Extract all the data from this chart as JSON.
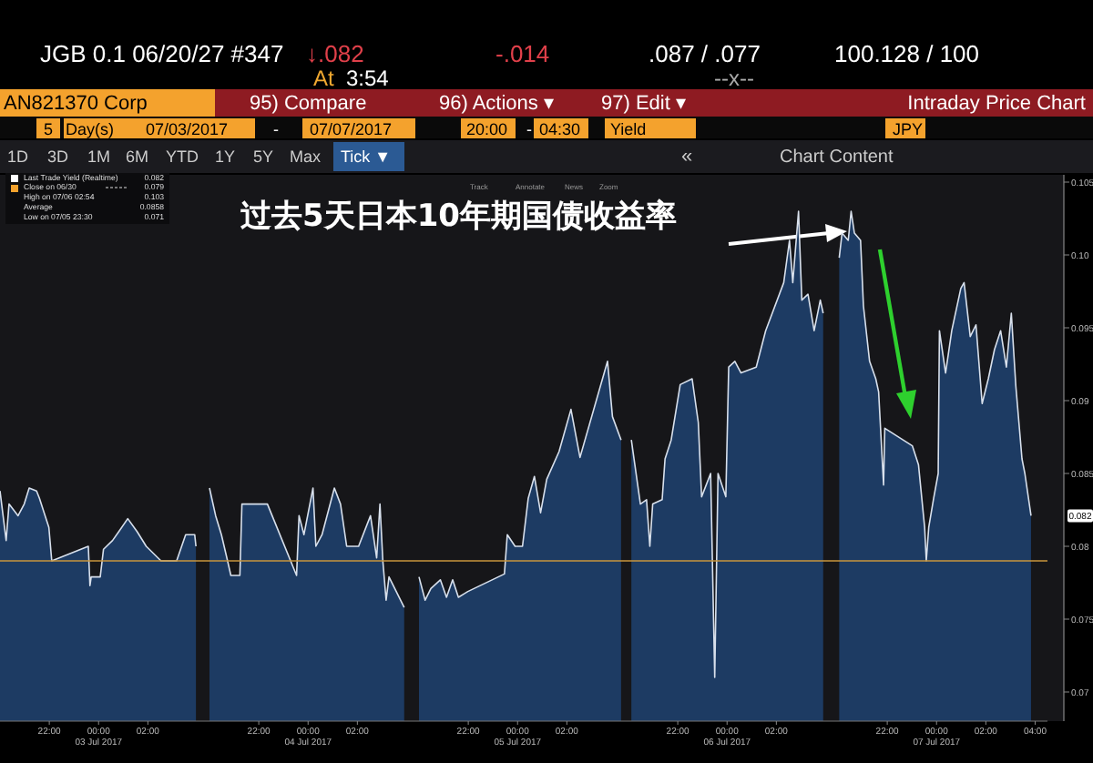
{
  "chart_data": [
    {
      "type": "other",
      "title": "过去5天日本10年期国债收益率",
      "annotations": [
        "JGB 0.1 06/20/27 #347",
        "↓.082",
        "-.014",
        ".087 / .077",
        "100.128 / 100",
        "At",
        "3:54",
        "--x--",
        "AN821370 Corp",
        "95) Compare",
        "96) Actions ▾",
        "97) Edit ▾",
        "Intraday Price Chart",
        "5",
        "Day(s)",
        "07/03/2017",
        "-",
        "07/07/2017",
        "20:00",
        "-",
        "04:30",
        "Yield",
        "JPY",
        "1D",
        "3D",
        "1M",
        "6M",
        "YTD",
        "1Y",
        "5Y",
        "Max",
        "Tick ▼",
        "«",
        "Chart Content",
        "Track",
        "Annotate",
        "News",
        "Zoom",
        "Last Trade Yield (Realtime)",
        "0.082",
        "Close on 06/30",
        "0.079",
        "High on 07/06 02:54",
        "0.103",
        "Average",
        "0.0858",
        "Low on 07/05 23:30",
        "0.071"
      ]
    },
    {
      "type": "area",
      "xlabel": "03 Jul 2017",
      "color": "#1d3b63",
      "xlim": [
        "2017-07-02T20:00",
        "2017-07-03T04:30"
      ],
      "ylim": [
        0.068,
        0.1055
      ],
      "tick_labels": "x",
      "xticks": [
        {
          "value": "2017-07-02T22:00",
          "label": "22:00"
        },
        {
          "value": "2017-07-03T00:00",
          "label": "00:00"
        },
        {
          "value": "2017-07-03T02:00",
          "label": "02:00"
        }
      ],
      "ref_lines": [
        {
          "axis": "y",
          "value": 0.079,
          "color": "#c8963c"
        }
      ],
      "x": [
        "2017-07-02T20:00",
        "2017-07-02T20:15",
        "2017-07-02T20:22",
        "2017-07-02T20:44",
        "2017-07-02T20:59",
        "2017-07-02T21:11",
        "2017-07-02T21:29",
        "2017-07-02T21:36",
        "2017-07-02T21:59",
        "2017-07-02T22:06",
        "2017-07-02T23:35",
        "2017-07-02T23:39",
        "2017-07-02T23:42",
        "2017-07-03T00:04",
        "2017-07-03T00:12",
        "2017-07-03T00:34",
        "2017-07-03T00:49",
        "2017-07-03T01:11",
        "2017-07-03T01:34",
        "2017-07-03T01:56",
        "2017-07-03T02:32",
        "2017-07-03T03:10",
        "2017-07-03T03:32",
        "2017-07-03T03:54",
        "2017-07-03T03:57"
      ],
      "values": [
        0.0838,
        0.0804,
        0.0829,
        0.0821,
        0.0829,
        0.084,
        0.0838,
        0.0833,
        0.0813,
        0.079,
        0.08,
        0.0773,
        0.0779,
        0.0779,
        0.0798,
        0.0804,
        0.081,
        0.0819,
        0.081,
        0.08,
        0.079,
        0.079,
        0.0808,
        0.0808,
        0.08
      ]
    },
    {
      "type": "area",
      "xlabel": "04 Jul 2017",
      "color": "#1d3b63",
      "xlim": [
        "2017-07-03T20:00",
        "2017-07-04T04:30"
      ],
      "ylim": [
        0.068,
        0.1055
      ],
      "tick_labels": "x",
      "xticks": [
        {
          "value": "2017-07-03T22:00",
          "label": "22:00"
        },
        {
          "value": "2017-07-04T00:00",
          "label": "00:00"
        },
        {
          "value": "2017-07-04T02:00",
          "label": "02:00"
        }
      ],
      "ref_lines": [
        {
          "axis": "y",
          "value": 0.079,
          "color": "#c8963c"
        }
      ],
      "x": [
        "2017-07-03T20:00",
        "2017-07-03T20:15",
        "2017-07-03T20:29",
        "2017-07-03T20:44",
        "2017-07-03T20:52",
        "2017-07-03T21:14",
        "2017-07-03T21:19",
        "2017-07-03T21:29",
        "2017-07-03T22:06",
        "2017-07-03T22:21",
        "2017-07-03T23:32",
        "2017-07-03T23:38",
        "2017-07-03T23:50",
        "2017-07-04T00:12",
        "2017-07-04T00:19",
        "2017-07-04T00:34",
        "2017-07-04T01:04",
        "2017-07-04T01:19",
        "2017-07-04T01:34",
        "2017-07-04T02:03",
        "2017-07-04T02:32",
        "2017-07-04T02:47",
        "2017-07-04T02:55",
        "2017-07-04T03:02",
        "2017-07-04T03:10",
        "2017-07-04T03:17",
        "2017-07-04T03:54"
      ],
      "values": [
        0.084,
        0.0821,
        0.0808,
        0.079,
        0.078,
        0.078,
        0.0829,
        0.0829,
        0.0829,
        0.0829,
        0.078,
        0.0821,
        0.0808,
        0.084,
        0.08,
        0.0808,
        0.084,
        0.0829,
        0.08,
        0.08,
        0.0821,
        0.0792,
        0.0829,
        0.079,
        0.0763,
        0.0779,
        0.0758
      ]
    },
    {
      "type": "area",
      "xlabel": "05 Jul 2017",
      "color": "#1d3b63",
      "xlim": [
        "2017-07-04T20:00",
        "2017-07-05T04:30"
      ],
      "ylim": [
        0.068,
        0.1055
      ],
      "tick_labels": "x",
      "xticks": [
        {
          "value": "2017-07-04T22:00",
          "label": "22:00"
        },
        {
          "value": "2017-07-05T00:00",
          "label": "00:00"
        },
        {
          "value": "2017-07-05T02:00",
          "label": "02:00"
        }
      ],
      "ref_lines": [
        {
          "axis": "y",
          "value": 0.079,
          "color": "#c8963c"
        }
      ],
      "x": [
        "2017-07-04T20:00",
        "2017-07-04T20:15",
        "2017-07-04T20:29",
        "2017-07-04T20:52",
        "2017-07-04T21:07",
        "2017-07-04T21:22",
        "2017-07-04T21:36",
        "2017-07-04T21:59",
        "2017-07-04T23:28",
        "2017-07-04T23:35",
        "2017-07-04T23:54",
        "2017-07-05T00:12",
        "2017-07-05T00:26",
        "2017-07-05T00:41",
        "2017-07-05T00:56",
        "2017-07-05T01:11",
        "2017-07-05T01:41",
        "2017-07-05T02:10",
        "2017-07-05T02:32",
        "2017-07-05T03:39",
        "2017-07-05T03:51",
        "2017-07-05T04:12"
      ],
      "values": [
        0.0779,
        0.0763,
        0.0771,
        0.0777,
        0.0765,
        0.0777,
        0.0765,
        0.0769,
        0.0781,
        0.0808,
        0.08,
        0.08,
        0.0833,
        0.0848,
        0.0823,
        0.0846,
        0.0865,
        0.0894,
        0.0861,
        0.0927,
        0.0889,
        0.0873
      ]
    },
    {
      "type": "area",
      "xlabel": "06 Jul 2017",
      "color": "#1d3b63",
      "xlim": [
        "2017-07-05T20:00",
        "2017-07-06T04:30"
      ],
      "ylim": [
        0.068,
        0.1055
      ],
      "tick_labels": "x",
      "xticks": [
        {
          "value": "2017-07-05T22:00",
          "label": "22:00"
        },
        {
          "value": "2017-07-06T00:00",
          "label": "00:00"
        },
        {
          "value": "2017-07-06T02:00",
          "label": "02:00"
        }
      ],
      "ref_lines": [
        {
          "axis": "y",
          "value": 0.079,
          "color": "#c8963c"
        }
      ],
      "x": [
        "2017-07-05T20:07",
        "2017-07-05T20:29",
        "2017-07-05T20:44",
        "2017-07-05T20:52",
        "2017-07-05T20:59",
        "2017-07-05T21:22",
        "2017-07-05T21:29",
        "2017-07-05T21:44",
        "2017-07-05T22:06",
        "2017-07-05T22:35",
        "2017-07-05T22:50",
        "2017-07-05T22:58",
        "2017-07-05T23:20",
        "2017-07-05T23:30",
        "2017-07-05T23:38",
        "2017-07-05T23:57",
        "2017-07-06T00:04",
        "2017-07-06T00:19",
        "2017-07-06T00:34",
        "2017-07-06T01:11",
        "2017-07-06T01:34",
        "2017-07-06T02:18",
        "2017-07-06T02:32",
        "2017-07-06T02:40",
        "2017-07-06T02:54",
        "2017-07-06T03:02",
        "2017-07-06T03:17",
        "2017-07-06T03:32",
        "2017-07-06T03:47",
        "2017-07-06T03:54"
      ],
      "values": [
        0.0873,
        0.0829,
        0.0832,
        0.08,
        0.0829,
        0.0832,
        0.086,
        0.0873,
        0.0911,
        0.0915,
        0.0885,
        0.0834,
        0.085,
        0.071,
        0.085,
        0.0834,
        0.0923,
        0.0927,
        0.0919,
        0.0923,
        0.0948,
        0.0981,
        0.101,
        0.0981,
        0.103,
        0.0969,
        0.0973,
        0.0948,
        0.0969,
        0.096
      ]
    },
    {
      "type": "area",
      "xlabel": "07 Jul 2017",
      "color": "#1d3b63",
      "xlim": [
        "2017-07-06T20:00",
        "2017-07-07T04:30"
      ],
      "ylim": [
        0.068,
        0.1055
      ],
      "xticks": [
        {
          "value": "2017-07-06T22:00",
          "label": "22:00"
        },
        {
          "value": "2017-07-07T00:00",
          "label": "00:00"
        },
        {
          "value": "2017-07-07T02:00",
          "label": "02:00"
        },
        {
          "value": "2017-07-07T04:00",
          "label": "04:00"
        }
      ],
      "yticks": [
        0.07,
        0.075,
        0.08,
        0.085,
        0.09,
        0.095,
        {
          "value": 0.1,
          "label": "0.10"
        },
        0.105
      ],
      "ref_lines": [
        {
          "axis": "y",
          "value": 0.079,
          "color": "#c8963c"
        }
      ],
      "annotations": [
        "0.082"
      ],
      "x": [
        "2017-07-06T20:03",
        "2017-07-06T20:10",
        "2017-07-06T20:25",
        "2017-07-06T20:32",
        "2017-07-06T20:40",
        "2017-07-06T20:55",
        "2017-07-06T21:02",
        "2017-07-06T21:17",
        "2017-07-06T21:32",
        "2017-07-06T21:39",
        "2017-07-06T21:51",
        "2017-07-06T21:54",
        "2017-07-06T23:01",
        "2017-07-06T23:16",
        "2017-07-06T23:31",
        "2017-07-06T23:35",
        "2017-07-06T23:41",
        "2017-07-06T23:53",
        "2017-07-07T00:04",
        "2017-07-07T00:07",
        "2017-07-07T00:22",
        "2017-07-07T00:37",
        "2017-07-07T00:59",
        "2017-07-07T01:07",
        "2017-07-07T01:22",
        "2017-07-07T01:36",
        "2017-07-07T01:51",
        "2017-07-07T02:06",
        "2017-07-07T02:21",
        "2017-07-07T02:36",
        "2017-07-07T02:50",
        "2017-07-07T03:02",
        "2017-07-07T03:13",
        "2017-07-07T03:28",
        "2017-07-07T03:35",
        "2017-07-07T03:50"
      ],
      "values": [
        0.0998,
        0.1015,
        0.101,
        0.103,
        0.1015,
        0.101,
        0.0965,
        0.0927,
        0.0915,
        0.0906,
        0.0842,
        0.0881,
        0.0869,
        0.0856,
        0.0813,
        0.079,
        0.0813,
        0.0833,
        0.085,
        0.0948,
        0.0919,
        0.0948,
        0.0977,
        0.0981,
        0.0944,
        0.0952,
        0.0898,
        0.0915,
        0.0935,
        0.0948,
        0.0923,
        0.096,
        0.091,
        0.086,
        0.085,
        0.0821
      ]
    }
  ]
}
